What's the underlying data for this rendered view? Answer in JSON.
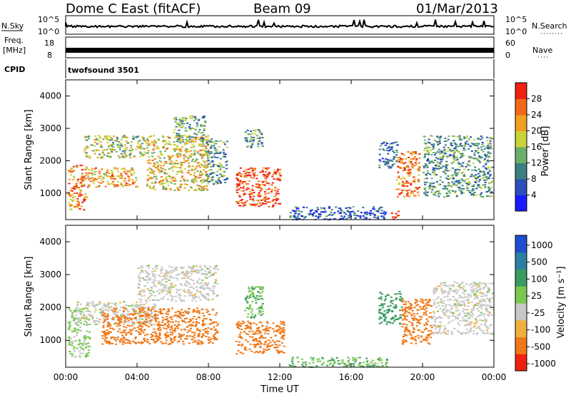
{
  "header": {
    "station": "Dome C East (fitACF)",
    "beam": "Beam 09",
    "date": "01/Mar/2013"
  },
  "strips": {
    "nsky_label": "N.Sky",
    "nsky_ticks": [
      "10^5",
      "10^0"
    ],
    "nsearch_label": "N.Search",
    "freq_label_1": "Freq.",
    "freq_label_2": "[MHz]",
    "freq_ticks": [
      "18",
      "8"
    ],
    "nave_label": "Nave",
    "nave_ticks": [
      "60",
      "0"
    ],
    "cpid_label": "CPID",
    "cpid_value": "twofsound 3501"
  },
  "chart_data": [
    {
      "type": "heatmap",
      "title": "",
      "xlabel": "Time UT",
      "ylabel": "Slant Range [km]",
      "xlim": [
        0,
        24
      ],
      "ylim": [
        180,
        4500
      ],
      "x_ticks": [
        "00:00",
        "04:00",
        "08:00",
        "12:00",
        "16:00",
        "20:00",
        "00:00"
      ],
      "y_ticks": [
        1000,
        2000,
        3000,
        4000
      ],
      "colorbar": {
        "label": "Power [dB]",
        "ticks": [
          4,
          8,
          12,
          16,
          20,
          24,
          28
        ],
        "range": [
          0,
          32
        ],
        "colors": [
          "#1a1aff",
          "#2a4fb8",
          "#3c7f80",
          "#6bb06a",
          "#c8d43a",
          "#f0a020",
          "#f06818",
          "#f02010"
        ]
      },
      "scatter_regions": [
        {
          "t": [
            0.1,
            1.2
          ],
          "r": [
            500,
            1900
          ],
          "level": 24
        },
        {
          "t": [
            1.2,
            4.0
          ],
          "r": [
            1200,
            1800
          ],
          "level": 22
        },
        {
          "t": [
            1.0,
            4.5
          ],
          "r": [
            2100,
            2800
          ],
          "level": 17
        },
        {
          "t": [
            4.5,
            8.0
          ],
          "r": [
            1100,
            2800
          ],
          "level": 19
        },
        {
          "t": [
            6.0,
            7.8
          ],
          "r": [
            2600,
            3400
          ],
          "level": 13
        },
        {
          "t": [
            7.8,
            9.0
          ],
          "r": [
            1300,
            2700
          ],
          "level": 11
        },
        {
          "t": [
            9.5,
            12.0
          ],
          "r": [
            600,
            1800
          ],
          "level": 29
        },
        {
          "t": [
            10.0,
            11.0
          ],
          "r": [
            2400,
            3000
          ],
          "level": 12
        },
        {
          "t": [
            12.5,
            18.0
          ],
          "r": [
            200,
            600
          ],
          "level": 7
        },
        {
          "t": [
            17.5,
            18.6
          ],
          "r": [
            1800,
            2600
          ],
          "level": 9
        },
        {
          "t": [
            18.5,
            19.8
          ],
          "r": [
            900,
            2300
          ],
          "level": 26
        },
        {
          "t": [
            20.0,
            23.9
          ],
          "r": [
            900,
            2800
          ],
          "level": 12
        },
        {
          "t": [
            18.2,
            18.6
          ],
          "r": [
            200,
            500
          ],
          "level": 30
        }
      ]
    },
    {
      "type": "heatmap",
      "title": "",
      "xlabel": "Time UT",
      "ylabel": "Slant Range [km]",
      "xlim": [
        0,
        24
      ],
      "ylim": [
        180,
        4500
      ],
      "x_ticks": [
        "00:00",
        "04:00",
        "08:00",
        "12:00",
        "16:00",
        "20:00",
        "00:00"
      ],
      "y_ticks": [
        1000,
        2000,
        3000,
        4000
      ],
      "colorbar": {
        "label": "Velocity [m s⁻¹]",
        "ticks": [
          1000,
          500,
          100,
          25,
          -25,
          -100,
          -500,
          -1000
        ],
        "colors": [
          "#1f4fd0",
          "#2a80a0",
          "#3a9a60",
          "#7ac850",
          "#c8c8c8",
          "#f0b040",
          "#f07818",
          "#f02010"
        ]
      },
      "scatter_regions": [
        {
          "t": [
            0.1,
            1.3
          ],
          "r": [
            500,
            2000
          ],
          "level": 50
        },
        {
          "t": [
            0.5,
            5.0
          ],
          "r": [
            1500,
            2200
          ],
          "level": 0
        },
        {
          "t": [
            2.0,
            8.5
          ],
          "r": [
            900,
            2000
          ],
          "level": -300
        },
        {
          "t": [
            4.0,
            8.5
          ],
          "r": [
            2200,
            3300
          ],
          "level": 0
        },
        {
          "t": [
            9.5,
            12.2
          ],
          "r": [
            600,
            1600
          ],
          "level": -300
        },
        {
          "t": [
            10.0,
            11.0
          ],
          "r": [
            1700,
            2700
          ],
          "level": 80
        },
        {
          "t": [
            12.5,
            18.0
          ],
          "r": [
            200,
            500
          ],
          "level": 80
        },
        {
          "t": [
            17.5,
            18.8
          ],
          "r": [
            1500,
            2500
          ],
          "level": 300
        },
        {
          "t": [
            18.8,
            20.5
          ],
          "r": [
            900,
            2300
          ],
          "level": -300
        },
        {
          "t": [
            20.5,
            23.9
          ],
          "r": [
            1200,
            2800
          ],
          "level": 0
        }
      ]
    }
  ]
}
